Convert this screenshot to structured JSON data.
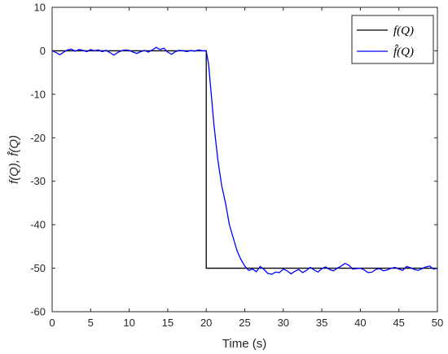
{
  "chart_data": {
    "type": "line",
    "xlabel": "Time (s)",
    "ylabel": "f(Q), f̂(Q)",
    "xlim": [
      0,
      50
    ],
    "ylim": [
      -60,
      10
    ],
    "xticks": [
      0,
      5,
      10,
      15,
      20,
      25,
      30,
      35,
      40,
      45,
      50
    ],
    "yticks": [
      10,
      0,
      -10,
      -20,
      -30,
      -40,
      -50,
      -60
    ],
    "grid": false,
    "legend_position": "top-right",
    "series": [
      {
        "name": "f(Q)",
        "color": "#000000",
        "x": [
          0,
          20,
          20,
          50
        ],
        "y": [
          0,
          0,
          -50,
          -50
        ]
      },
      {
        "name": "f̂(Q)",
        "color": "#0000ff",
        "x": [
          0,
          0.5,
          1,
          1.5,
          2,
          2.5,
          3,
          3.5,
          4,
          4.5,
          5,
          5.5,
          6,
          6.5,
          7,
          7.5,
          8,
          8.5,
          9,
          9.5,
          10,
          10.5,
          11,
          11.5,
          12,
          12.5,
          13,
          13.5,
          14,
          14.5,
          15,
          15.5,
          16,
          16.5,
          17,
          17.5,
          18,
          18.5,
          19,
          19.5,
          20,
          20.3,
          20.6,
          21,
          21.5,
          22,
          22.5,
          23,
          23.5,
          24,
          24.5,
          25,
          25.5,
          26,
          26.5,
          27,
          27.5,
          28,
          28.5,
          29,
          29.5,
          30,
          30.5,
          31,
          31.5,
          32,
          32.5,
          33,
          33.5,
          34,
          34.5,
          35,
          35.5,
          36,
          36.5,
          37,
          37.5,
          38,
          38.5,
          39,
          39.5,
          40,
          40.5,
          41,
          41.5,
          42,
          42.5,
          43,
          43.5,
          44,
          44.5,
          45,
          45.5,
          46,
          46.5,
          47,
          47.5,
          48,
          48.5,
          49,
          49.5,
          50
        ],
        "y": [
          0,
          -0.4,
          -0.9,
          -0.3,
          0.2,
          0.4,
          -0.1,
          0.3,
          0.1,
          -0.2,
          0.3,
          0.0,
          0.2,
          -0.2,
          0.1,
          -0.4,
          -1.0,
          -0.4,
          0.0,
          0.2,
          0.1,
          -0.3,
          -0.6,
          -0.2,
          0.1,
          -0.3,
          0.2,
          0.8,
          0.3,
          0.6,
          -0.3,
          -0.8,
          -0.2,
          0.1,
          0.0,
          -0.2,
          0.1,
          -0.1,
          0.2,
          0.0,
          0.0,
          -3,
          -9,
          -17,
          -25,
          -31,
          -35,
          -40,
          -43,
          -46,
          -48,
          -49.5,
          -50.5,
          -50.2,
          -50.8,
          -49.6,
          -50.3,
          -51.2,
          -51.4,
          -50.9,
          -51.0,
          -50.2,
          -50.6,
          -51.3,
          -50.7,
          -50.3,
          -51.0,
          -50.5,
          -49.8,
          -50.4,
          -50.9,
          -50.1,
          -49.7,
          -50.3,
          -50.6,
          -50.0,
          -49.5,
          -48.9,
          -49.3,
          -50.2,
          -50.1,
          -50.0,
          -50.4,
          -51.0,
          -50.9,
          -50.3,
          -50.1,
          -50.6,
          -50.4,
          -50.0,
          -49.8,
          -50.2,
          -50.5,
          -49.6,
          -49.9,
          -50.3,
          -50.5,
          -50.1,
          -49.7,
          -49.5,
          -50.2,
          -50.0
        ]
      }
    ]
  }
}
